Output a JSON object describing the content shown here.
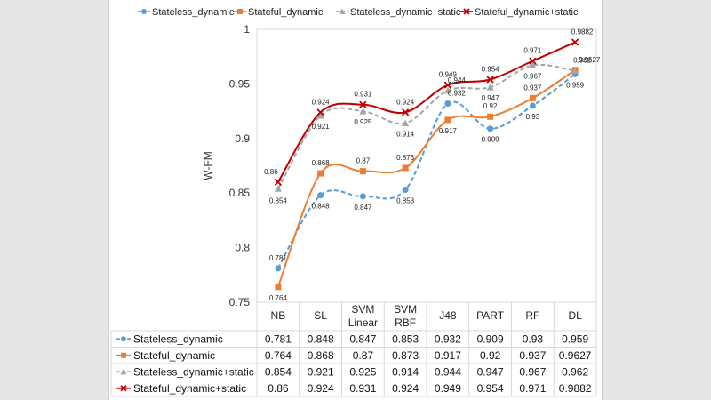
{
  "chart_data": {
    "type": "line",
    "title": "",
    "xlabel": "",
    "ylabel": "W-FM",
    "ylim": [
      0.75,
      1
    ],
    "yticks": [
      "0.75",
      "0.8",
      "0.85",
      "0.9",
      "0.95",
      "1"
    ],
    "ytick_values": [
      0.75,
      0.8,
      0.85,
      0.9,
      0.95,
      1.0
    ],
    "categories": [
      {
        "line1": "NB",
        "line2": ""
      },
      {
        "line1": "SL",
        "line2": ""
      },
      {
        "line1": "SVM",
        "line2": "Linear"
      },
      {
        "line1": "SVM",
        "line2": "RBF"
      },
      {
        "line1": "J48",
        "line2": ""
      },
      {
        "line1": "PART",
        "line2": ""
      },
      {
        "line1": "RF",
        "line2": ""
      },
      {
        "line1": "DL",
        "line2": ""
      }
    ],
    "series": [
      {
        "name": "Stateless_dynamic",
        "color": "#5b9bd5",
        "marker": "circle",
        "dash": true,
        "values": [
          0.781,
          0.848,
          0.847,
          0.853,
          0.932,
          0.909,
          0.93,
          0.959
        ],
        "labels": [
          "0.781",
          "0.848",
          "0.847",
          "0.853",
          "0.932",
          "0.909",
          "0.93",
          "0.959"
        ]
      },
      {
        "name": "Stateful_dynamic",
        "color": "#ed7d31",
        "marker": "square",
        "dash": false,
        "values": [
          0.764,
          0.868,
          0.87,
          0.873,
          0.917,
          0.92,
          0.937,
          0.9627
        ],
        "labels": [
          "0.764",
          "0.868",
          "0.87",
          "0.873",
          "0.917",
          "0.92",
          "0.937",
          "0.9627"
        ]
      },
      {
        "name": "Stateless_dynamic+static",
        "color": "#a5a5a5",
        "marker": "triangle",
        "dash": true,
        "values": [
          0.854,
          0.921,
          0.925,
          0.914,
          0.944,
          0.947,
          0.967,
          0.962
        ],
        "labels": [
          "0.854",
          "0.921",
          "0.925",
          "0.914",
          "0.944",
          "0.947",
          "0.967",
          "0.962"
        ]
      },
      {
        "name": "Stateful_dynamic+static",
        "color": "#c00000",
        "marker": "x",
        "dash": false,
        "values": [
          0.86,
          0.924,
          0.931,
          0.924,
          0.949,
          0.954,
          0.971,
          0.9882
        ],
        "labels": [
          "0.86",
          "0.924",
          "0.931",
          "0.924",
          "0.949",
          "0.954",
          "0.971",
          "0.9882"
        ]
      }
    ],
    "legend_position": "top",
    "data_table": true
  }
}
